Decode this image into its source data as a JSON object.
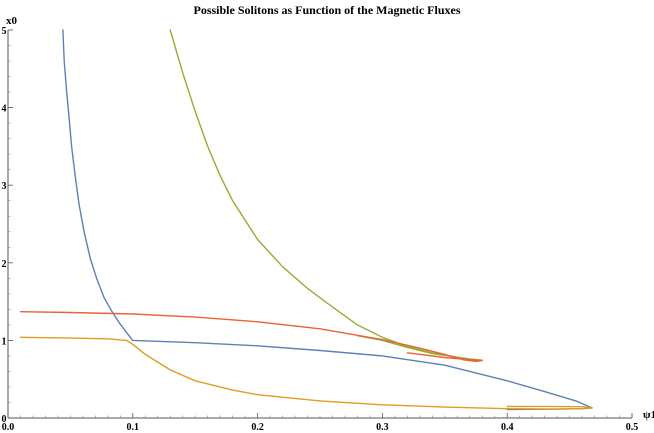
{
  "chart_data": {
    "type": "line",
    "title": "Possible Solitons as Function of the Magnetic Fluxes",
    "xlabel": "ψ1",
    "ylabel": "x0",
    "xlim": [
      0,
      0.5
    ],
    "ylim": [
      0,
      5
    ],
    "x_ticks": [
      "0.0",
      "0.1",
      "0.2",
      "0.3",
      "0.4",
      "0.5"
    ],
    "y_ticks": [
      "0",
      "1",
      "2",
      "3",
      "4",
      "5"
    ],
    "grid": false,
    "legend": "none",
    "series": [
      {
        "color": "#5e81b5",
        "points": [
          [
            0.044,
            5.0
          ],
          [
            0.045,
            4.6
          ],
          [
            0.047,
            4.2
          ],
          [
            0.049,
            3.85
          ],
          [
            0.051,
            3.5
          ],
          [
            0.054,
            3.1
          ],
          [
            0.057,
            2.75
          ],
          [
            0.061,
            2.4
          ],
          [
            0.066,
            2.05
          ],
          [
            0.071,
            1.8
          ],
          [
            0.077,
            1.55
          ],
          [
            0.083,
            1.38
          ],
          [
            0.089,
            1.23
          ],
          [
            0.095,
            1.1
          ],
          [
            0.1,
            1.0
          ],
          [
            0.15,
            0.97
          ],
          [
            0.2,
            0.93
          ],
          [
            0.25,
            0.87
          ],
          [
            0.3,
            0.8
          ],
          [
            0.35,
            0.68
          ],
          [
            0.4,
            0.48
          ],
          [
            0.43,
            0.34
          ],
          [
            0.455,
            0.22
          ],
          [
            0.468,
            0.13
          ],
          [
            0.46,
            0.12
          ],
          [
            0.44,
            0.115
          ],
          [
            0.4,
            0.11
          ]
        ]
      },
      {
        "color": "#e19c24",
        "points": [
          [
            0.01,
            1.04
          ],
          [
            0.05,
            1.03
          ],
          [
            0.08,
            1.02
          ],
          [
            0.095,
            1.0
          ],
          [
            0.1,
            0.95
          ],
          [
            0.11,
            0.82
          ],
          [
            0.13,
            0.62
          ],
          [
            0.15,
            0.48
          ],
          [
            0.18,
            0.36
          ],
          [
            0.2,
            0.3
          ],
          [
            0.25,
            0.22
          ],
          [
            0.3,
            0.17
          ],
          [
            0.35,
            0.14
          ],
          [
            0.4,
            0.12
          ],
          [
            0.44,
            0.115
          ],
          [
            0.46,
            0.12
          ],
          [
            0.468,
            0.13
          ],
          [
            0.46,
            0.145
          ],
          [
            0.43,
            0.15
          ],
          [
            0.4,
            0.148
          ]
        ]
      },
      {
        "color": "#8fb032",
        "points": [
          [
            0.13,
            5.0
          ],
          [
            0.14,
            4.45
          ],
          [
            0.15,
            3.95
          ],
          [
            0.16,
            3.5
          ],
          [
            0.17,
            3.12
          ],
          [
            0.18,
            2.8
          ],
          [
            0.2,
            2.3
          ],
          [
            0.22,
            1.95
          ],
          [
            0.24,
            1.67
          ],
          [
            0.26,
            1.43
          ],
          [
            0.28,
            1.2
          ],
          [
            0.3,
            1.04
          ],
          [
            0.32,
            0.92
          ],
          [
            0.34,
            0.84
          ],
          [
            0.36,
            0.78
          ],
          [
            0.375,
            0.74
          ],
          [
            0.38,
            0.745
          ],
          [
            0.37,
            0.76
          ],
          [
            0.34,
            0.83
          ],
          [
            0.32,
            0.91
          ],
          [
            0.3,
            1.0
          ],
          [
            0.28,
            1.06
          ]
        ]
      },
      {
        "color": "#eb6235",
        "points": [
          [
            0.01,
            1.37
          ],
          [
            0.05,
            1.36
          ],
          [
            0.1,
            1.34
          ],
          [
            0.15,
            1.3
          ],
          [
            0.2,
            1.24
          ],
          [
            0.25,
            1.15
          ],
          [
            0.3,
            1.01
          ],
          [
            0.33,
            0.9
          ],
          [
            0.35,
            0.82
          ],
          [
            0.365,
            0.75
          ],
          [
            0.375,
            0.73
          ],
          [
            0.38,
            0.74
          ],
          [
            0.37,
            0.75
          ],
          [
            0.35,
            0.78
          ],
          [
            0.32,
            0.84
          ]
        ]
      }
    ]
  }
}
